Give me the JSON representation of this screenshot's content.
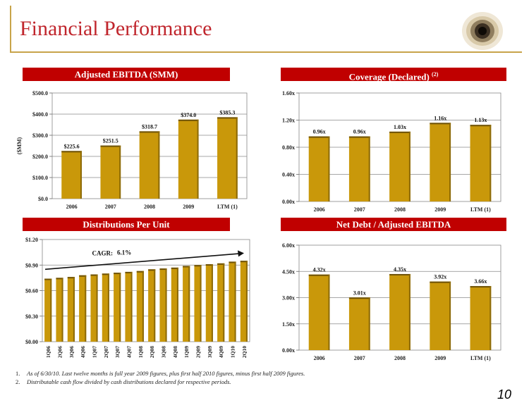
{
  "page": {
    "title": "Financial Performance",
    "page_number": "10",
    "accent_color": "#c00000",
    "bar_color": "#c9980a",
    "rule_color": "#c8a44a"
  },
  "panels": {
    "ebitda_header": "Adjusted EBITDA (SMM)",
    "coverage_header": "Coverage (Declared)",
    "coverage_header_sup": "(2)",
    "distributions_header": "Distributions Per Unit",
    "netdebt_header": "Net Debt / Adjusted EBITDA"
  },
  "footnotes": [
    {
      "num": "1.",
      "text": "As of 6/30/10. Last twelve months is full year 2009 figures, plus first half 2010 figures, minus first half 2009 figures."
    },
    {
      "num": "2.",
      "text": "Distributable cash flow divided by cash distributions declared for respective periods."
    }
  ],
  "chart_data": [
    {
      "id": "ebitda",
      "type": "bar",
      "title": "Adjusted EBITDA (SMM)",
      "ylabel": "($MM)",
      "categories": [
        "2006",
        "2007",
        "2008",
        "2009",
        "LTM (1)"
      ],
      "values": [
        225.6,
        251.5,
        318.7,
        374.0,
        385.3
      ],
      "data_labels": [
        "$225.6",
        "$251.5",
        "$318.7",
        "$374.0",
        "$385.3"
      ],
      "ylim": [
        0,
        500
      ],
      "yticks": [
        "$0.0",
        "$100.0",
        "$200.0",
        "$300.0",
        "$400.0",
        "$500.0"
      ],
      "grid": true
    },
    {
      "id": "coverage",
      "type": "bar",
      "title": "Coverage (Declared)",
      "categories": [
        "2006",
        "2007",
        "2008",
        "2009",
        "LTM (1)"
      ],
      "values": [
        0.96,
        0.96,
        1.03,
        1.16,
        1.13
      ],
      "data_labels": [
        "0.96x",
        "0.96x",
        "1.03x",
        "1.16x",
        "1.13x"
      ],
      "ylim": [
        0,
        1.6
      ],
      "yticks": [
        "0.00x",
        "0.40x",
        "0.80x",
        "1.20x",
        "1.60x"
      ],
      "grid": true
    },
    {
      "id": "distributions",
      "type": "bar",
      "title": "Distributions Per Unit",
      "categories": [
        "1Q06",
        "2Q06",
        "3Q06",
        "4Q06",
        "1Q07",
        "2Q07",
        "3Q07",
        "4Q07",
        "1Q08",
        "2Q08",
        "3Q08",
        "4Q08",
        "1Q09",
        "2Q09",
        "3Q09",
        "4Q09",
        "1Q10",
        "2Q10"
      ],
      "values": [
        0.74,
        0.75,
        0.76,
        0.78,
        0.79,
        0.8,
        0.81,
        0.82,
        0.83,
        0.85,
        0.86,
        0.87,
        0.89,
        0.9,
        0.91,
        0.92,
        0.94,
        0.95
      ],
      "ylim": [
        0,
        1.2
      ],
      "yticks": [
        "$0.00",
        "$0.30",
        "$0.60",
        "$0.90",
        "$1.20"
      ],
      "annotation": {
        "label": "CAGR:",
        "value": "6.1%"
      },
      "grid": true
    },
    {
      "id": "netdebt",
      "type": "bar",
      "title": "Net Debt / Adjusted EBITDA",
      "categories": [
        "2006",
        "2007",
        "2008",
        "2009",
        "LTM (1)"
      ],
      "values": [
        4.32,
        3.01,
        4.35,
        3.92,
        3.66
      ],
      "data_labels": [
        "4.32x",
        "3.01x",
        "4.35x",
        "3.92x",
        "3.66x"
      ],
      "ylim": [
        0,
        6
      ],
      "yticks": [
        "0.00x",
        "1.50x",
        "3.00x",
        "4.50x",
        "6.00x"
      ],
      "grid": true
    }
  ]
}
